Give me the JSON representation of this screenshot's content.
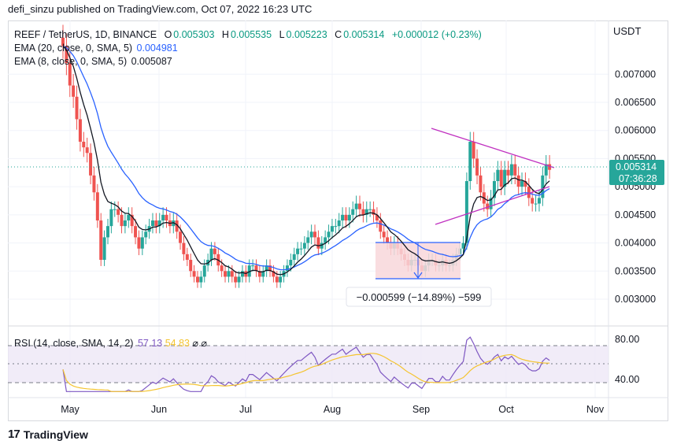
{
  "header": {
    "published": "defi_sinzu published on TradingView.com, Oct 07, 2022 16:23 UTC"
  },
  "legend": {
    "symbol": "REEF / TetherUS, 1D, BINANCE",
    "o_label": "O",
    "o": "0.005303",
    "h_label": "H",
    "h": "0.005535",
    "l_label": "L",
    "l": "0.005223",
    "c_label": "C",
    "c": "0.005314",
    "change": "+0.000012 (+0.23%)",
    "ema20_label": "EMA (20, close, 0, SMA, 5)",
    "ema20": "0.004981",
    "ema8_label": "EMA (8, close, 0, SMA, 5)",
    "ema8": "0.005087",
    "rsi_label": "RSI (14, close, SMA, 14, 2)",
    "rsi": "57.13",
    "rsi_ma": "54.83"
  },
  "price_axis": {
    "currency": "USDT",
    "current_price": "0.005314",
    "countdown": "07:36:28"
  },
  "measure": {
    "label": "−0.000599 (−14.89%) −599"
  },
  "footer": {
    "brand": "TradingView"
  },
  "colors": {
    "up": "#26a69a",
    "down": "#ef5350",
    "ema20": "#2962ff",
    "ema8": "#131722",
    "rsi": "#7e57c2",
    "rsi_ma": "#f4c430",
    "trendline": "#c030c0"
  },
  "chart_data": {
    "type": "candlestick",
    "price_ticks": [
      0.003,
      0.0035,
      0.004,
      0.0045,
      0.005,
      0.0055,
      0.006,
      0.0065,
      0.007
    ],
    "price_ylim": [
      0.00258,
      0.0079
    ],
    "x_ticks": [
      "May",
      "Jun",
      "Jul",
      "Aug",
      "Sep",
      "Oct",
      "Nov"
    ],
    "rsi_ticks": [
      40,
      80
    ],
    "rsi_ylim": [
      22,
      90
    ],
    "close": [
      0.0075,
      0.0072,
      0.0068,
      0.0066,
      0.0062,
      0.0058,
      0.0057,
      0.0056,
      0.0052,
      0.0049,
      0.0044,
      0.0037,
      0.0041,
      0.0043,
      0.0046,
      0.0046,
      0.0045,
      0.0043,
      0.0044,
      0.0045,
      0.0043,
      0.0041,
      0.0039,
      0.0041,
      0.0042,
      0.0043,
      0.0044,
      0.0043,
      0.0044,
      0.0045,
      0.0044,
      0.0043,
      0.0044,
      0.0042,
      0.004,
      0.0038,
      0.0037,
      0.0035,
      0.0034,
      0.0033,
      0.0034,
      0.0036,
      0.0037,
      0.0039,
      0.0038,
      0.0036,
      0.0035,
      0.0034,
      0.0035,
      0.0034,
      0.0033,
      0.0034,
      0.0035,
      0.0034,
      0.0036,
      0.0036,
      0.0035,
      0.0034,
      0.0035,
      0.0036,
      0.0035,
      0.0034,
      0.0033,
      0.0034,
      0.0035,
      0.0036,
      0.0037,
      0.0038,
      0.0039,
      0.0039,
      0.004,
      0.0041,
      0.0042,
      0.0041,
      0.0039,
      0.004,
      0.0041,
      0.0042,
      0.0043,
      0.0043,
      0.0044,
      0.0045,
      0.0044,
      0.0045,
      0.0046,
      0.0047,
      0.0046,
      0.0045,
      0.0046,
      0.0046,
      0.0045,
      0.0044,
      0.0042,
      0.0041,
      0.004,
      0.0039,
      0.004,
      0.0039,
      0.0038,
      0.0037,
      0.0036,
      0.0037,
      0.0037,
      0.0036,
      0.0035,
      0.0036,
      0.0037,
      0.0037,
      0.0036,
      0.0036,
      0.0037,
      0.0036,
      0.0036,
      0.0037,
      0.0038,
      0.0039,
      0.004,
      0.0051,
      0.0058,
      0.0055,
      0.0052,
      0.0049,
      0.0047,
      0.0046,
      0.0048,
      0.0051,
      0.0053,
      0.005,
      0.0053,
      0.0052,
      0.0054,
      0.0052,
      0.005,
      0.0051,
      0.005,
      0.0048,
      0.0047,
      0.0047,
      0.0048,
      0.0052,
      0.0054,
      0.0053
    ]
  }
}
